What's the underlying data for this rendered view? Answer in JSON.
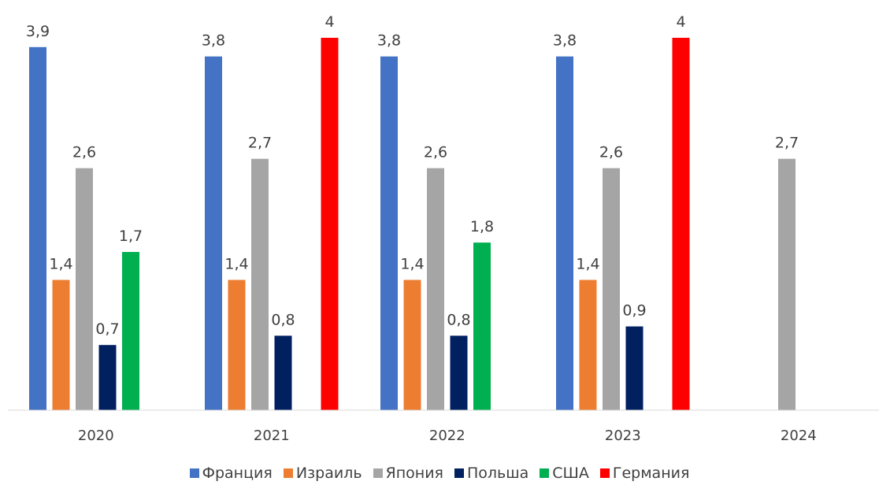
{
  "chart_data": {
    "type": "bar",
    "categories": [
      "2020",
      "2021",
      "2022",
      "2023",
      "2024"
    ],
    "series": [
      {
        "name": "Франция",
        "color": "#4472C4",
        "values": [
          3.9,
          3.8,
          3.8,
          3.8,
          null
        ],
        "labels": [
          "3,9",
          "3,8",
          "3,8",
          "3,8",
          null
        ]
      },
      {
        "name": "Израиль",
        "color": "#ED7D31",
        "values": [
          1.4,
          1.4,
          1.4,
          1.4,
          null
        ],
        "labels": [
          "1,4",
          "1,4",
          "1,4",
          "1,4",
          null
        ]
      },
      {
        "name": "Япония",
        "color": "#A5A5A5",
        "values": [
          2.6,
          2.7,
          2.6,
          2.6,
          2.7
        ],
        "labels": [
          "2,6",
          "2,7",
          "2,6",
          "2,6",
          "2,7"
        ]
      },
      {
        "name": "Польша",
        "color": "#002060",
        "values": [
          0.7,
          0.8,
          0.8,
          0.9,
          null
        ],
        "labels": [
          "0,7",
          "0,8",
          "0,8",
          "0,9",
          null
        ]
      },
      {
        "name": "США",
        "color": "#00B050",
        "values": [
          1.7,
          null,
          1.8,
          null,
          null
        ],
        "labels": [
          "1,7",
          null,
          "1,8",
          null,
          null
        ]
      },
      {
        "name": "Германия",
        "color": "#FF0000",
        "values": [
          null,
          4,
          null,
          4,
          null
        ],
        "labels": [
          null,
          "4",
          null,
          "4",
          null
        ]
      }
    ],
    "ylim": [
      0,
      4.4
    ],
    "grid": false,
    "legend_position": "bottom"
  }
}
